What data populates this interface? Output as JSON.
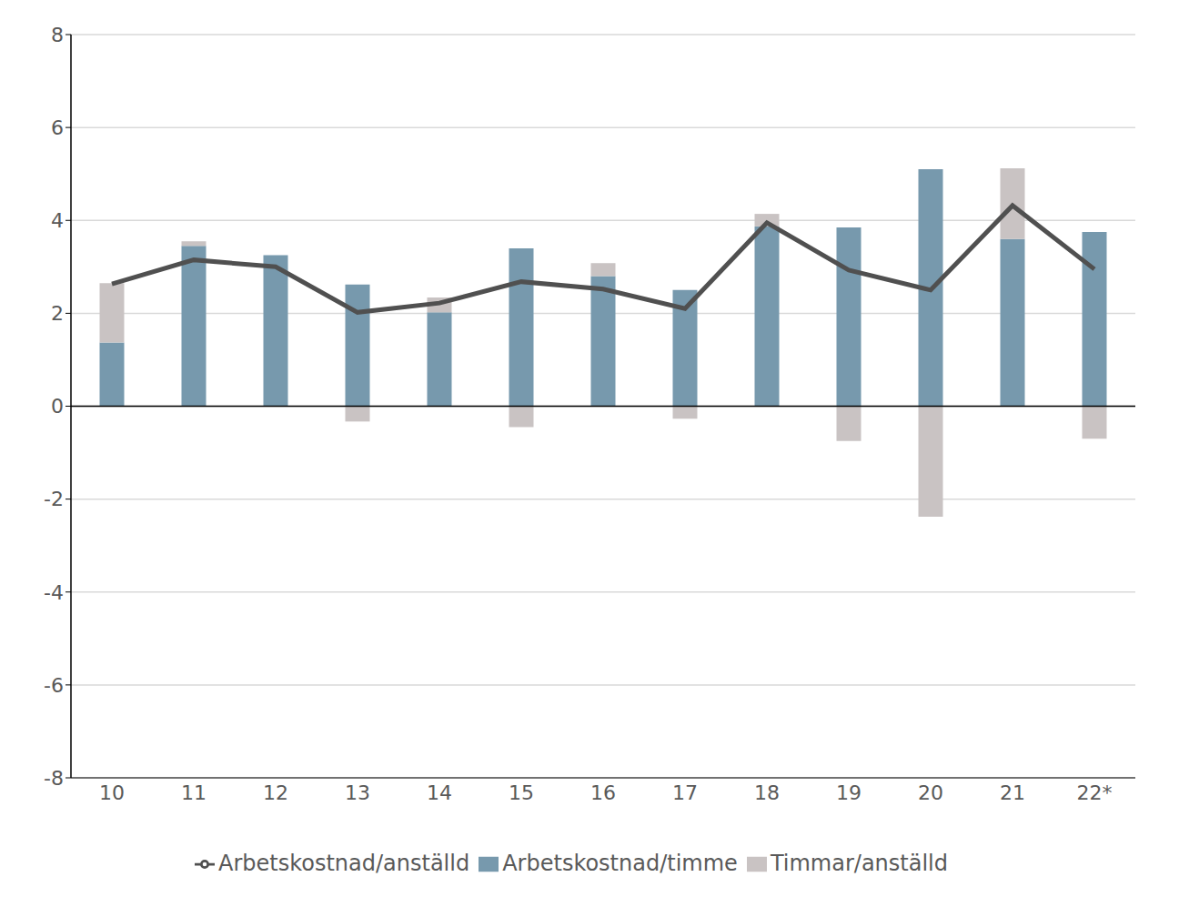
{
  "chart_data": {
    "type": "bar",
    "stacked": true,
    "grid": true,
    "legend": "bottom",
    "categories": [
      "10",
      "11",
      "12",
      "13",
      "14",
      "15",
      "16",
      "17",
      "18",
      "19",
      "20",
      "21",
      "22*"
    ],
    "series": [
      {
        "name": "Arbetskostnad/timme",
        "type": "bar",
        "color": "#7799ad",
        "values": [
          1.37,
          3.45,
          3.25,
          2.62,
          2.02,
          3.4,
          2.8,
          2.5,
          3.87,
          3.85,
          5.1,
          3.6,
          3.75
        ]
      },
      {
        "name": "Timmar/anställd",
        "type": "bar",
        "color": "#c9c3c3",
        "values": [
          1.28,
          0.1,
          0,
          -0.33,
          0.32,
          -0.45,
          0.28,
          -0.27,
          0.27,
          -0.75,
          -2.38,
          1.52,
          -0.7
        ]
      },
      {
        "name": "Arbetskostnad/anställd",
        "type": "line",
        "color": "#505050",
        "values": [
          2.63,
          3.15,
          3.0,
          2.02,
          2.22,
          2.68,
          2.52,
          2.1,
          3.95,
          2.93,
          2.5,
          4.32,
          2.95
        ]
      }
    ],
    "ylim": [
      -8,
      8
    ],
    "yticks": [
      -8,
      -6,
      -4,
      -2,
      0,
      2,
      4,
      6,
      8
    ]
  }
}
